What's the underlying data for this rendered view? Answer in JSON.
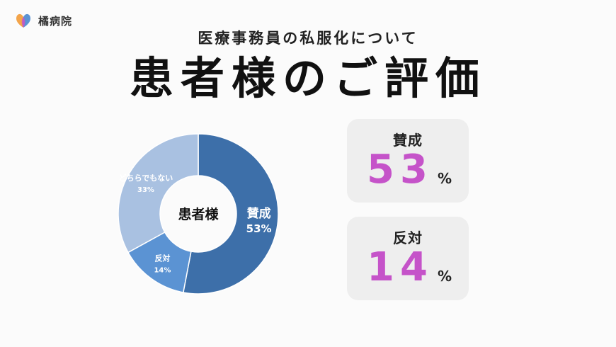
{
  "brand": {
    "name": "橘病院",
    "logo_icon": "heart-petals-icon"
  },
  "header": {
    "subtitle": "医療事務員の私服化について",
    "title": "患者様のご評価"
  },
  "chart_data": {
    "type": "pie",
    "center_label": "患者様",
    "slices": [
      {
        "label": "賛成",
        "value": 53,
        "value_label": "53%",
        "color": "#3d6fa9"
      },
      {
        "label": "反対",
        "value": 14,
        "value_label": "14%",
        "color": "#5b93d3"
      },
      {
        "label": "どちらでもない",
        "value": 33,
        "value_label": "33%",
        "color": "#a9c1e1"
      }
    ]
  },
  "stats": [
    {
      "label": "賛成",
      "value": "53",
      "unit": "%"
    },
    {
      "label": "反対",
      "value": "14",
      "unit": "%"
    }
  ],
  "colors": {
    "accent": "#c553c9",
    "card_bg": "#eeeeee"
  }
}
